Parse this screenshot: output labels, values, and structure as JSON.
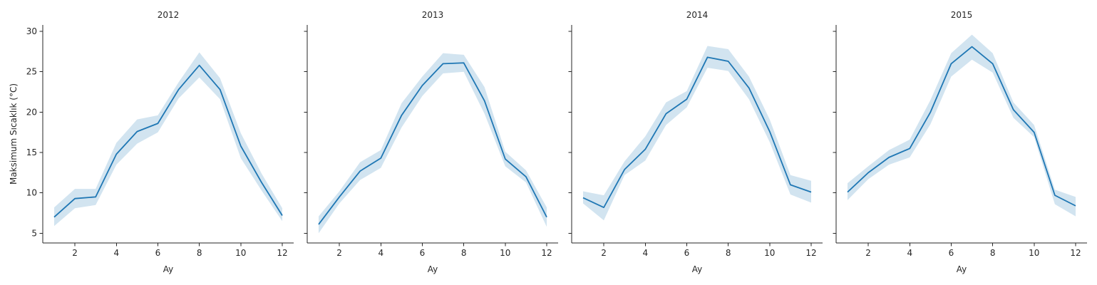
{
  "chart_data": [
    {
      "type": "line",
      "title": "2012",
      "xlabel": "Ay",
      "ylabel": "Maksimum Sıcaklık (°C)",
      "xlim": [
        0.45,
        12.55
      ],
      "ylim": [
        3.8,
        30.8
      ],
      "xticks": [
        "2",
        "4",
        "6",
        "8",
        "10",
        "12"
      ],
      "yticks": [
        "5",
        "10",
        "15",
        "20",
        "25",
        "30"
      ],
      "series": [
        {
          "color": "#1f77b4",
          "x": [
            1,
            2,
            3,
            4,
            5,
            6,
            7,
            8,
            9,
            10,
            11,
            12
          ],
          "y": [
            7.0,
            9.3,
            9.5,
            14.8,
            17.6,
            18.6,
            22.8,
            25.8,
            22.8,
            15.8,
            11.3,
            7.2
          ],
          "ci_lower": [
            5.9,
            8.1,
            8.5,
            13.5,
            16.1,
            17.5,
            21.7,
            24.3,
            21.6,
            14.3,
            10.3,
            6.5
          ],
          "ci_upper": [
            8.2,
            10.5,
            10.5,
            16.2,
            19.1,
            19.6,
            23.7,
            27.4,
            24.2,
            17.4,
            12.4,
            8.1
          ]
        }
      ]
    },
    {
      "type": "line",
      "title": "2013",
      "xlabel": "Ay",
      "ylabel": "",
      "xlim": [
        0.45,
        12.55
      ],
      "ylim": [
        3.8,
        30.8
      ],
      "xticks": [
        "2",
        "4",
        "6",
        "8",
        "10",
        "12"
      ],
      "yticks": [
        "",
        "",
        "",
        "",
        "",
        ""
      ],
      "series": [
        {
          "color": "#1f77b4",
          "x": [
            1,
            2,
            3,
            4,
            5,
            6,
            7,
            8,
            9,
            10,
            11,
            12
          ],
          "y": [
            6.1,
            9.5,
            12.7,
            14.3,
            19.6,
            23.3,
            26.0,
            26.1,
            21.4,
            14.2,
            12.0,
            7.0
          ],
          "ci_lower": [
            5.0,
            8.7,
            11.6,
            13.1,
            18.1,
            22.0,
            24.8,
            25.0,
            19.8,
            13.3,
            11.3,
            5.8
          ],
          "ci_upper": [
            7.1,
            10.2,
            13.8,
            15.3,
            21.1,
            24.4,
            27.3,
            27.1,
            23.1,
            15.1,
            12.8,
            8.2
          ]
        }
      ]
    },
    {
      "type": "line",
      "title": "2014",
      "xlabel": "Ay",
      "ylabel": "",
      "xlim": [
        0.45,
        12.55
      ],
      "ylim": [
        3.8,
        30.8
      ],
      "xticks": [
        "2",
        "4",
        "6",
        "8",
        "10",
        "12"
      ],
      "yticks": [
        "",
        "",
        "",
        "",
        "",
        ""
      ],
      "series": [
        {
          "color": "#1f77b4",
          "x": [
            1,
            2,
            3,
            4,
            5,
            6,
            7,
            8,
            9,
            10,
            11,
            12
          ],
          "y": [
            9.4,
            8.2,
            12.9,
            15.4,
            19.8,
            21.6,
            26.8,
            26.3,
            23.0,
            17.6,
            11.0,
            10.1
          ],
          "ci_lower": [
            8.7,
            6.6,
            12.2,
            14.0,
            18.4,
            20.6,
            25.5,
            25.1,
            21.6,
            16.3,
            9.8,
            8.8
          ],
          "ci_upper": [
            10.2,
            9.7,
            13.9,
            17.0,
            21.2,
            22.6,
            28.2,
            27.8,
            24.4,
            19.1,
            12.2,
            11.5
          ]
        }
      ]
    },
    {
      "type": "line",
      "title": "2015",
      "xlabel": "Ay",
      "ylabel": "",
      "xlim": [
        0.45,
        12.55
      ],
      "ylim": [
        3.8,
        30.8
      ],
      "xticks": [
        "2",
        "4",
        "6",
        "8",
        "10",
        "12"
      ],
      "yticks": [
        "",
        "",
        "",
        "",
        "",
        ""
      ],
      "series": [
        {
          "color": "#1f77b4",
          "x": [
            1,
            2,
            3,
            4,
            5,
            6,
            7,
            8,
            9,
            10,
            11,
            12
          ],
          "y": [
            10.1,
            12.5,
            14.4,
            15.5,
            20.0,
            26.0,
            28.1,
            26.0,
            20.3,
            17.5,
            9.7,
            8.4
          ],
          "ci_lower": [
            9.1,
            11.7,
            13.5,
            14.4,
            18.5,
            24.4,
            26.5,
            24.9,
            19.3,
            16.9,
            8.6,
            7.1
          ],
          "ci_upper": [
            11.2,
            13.3,
            15.3,
            16.6,
            21.5,
            27.3,
            29.6,
            27.3,
            21.2,
            18.4,
            10.4,
            9.5
          ]
        }
      ]
    }
  ]
}
